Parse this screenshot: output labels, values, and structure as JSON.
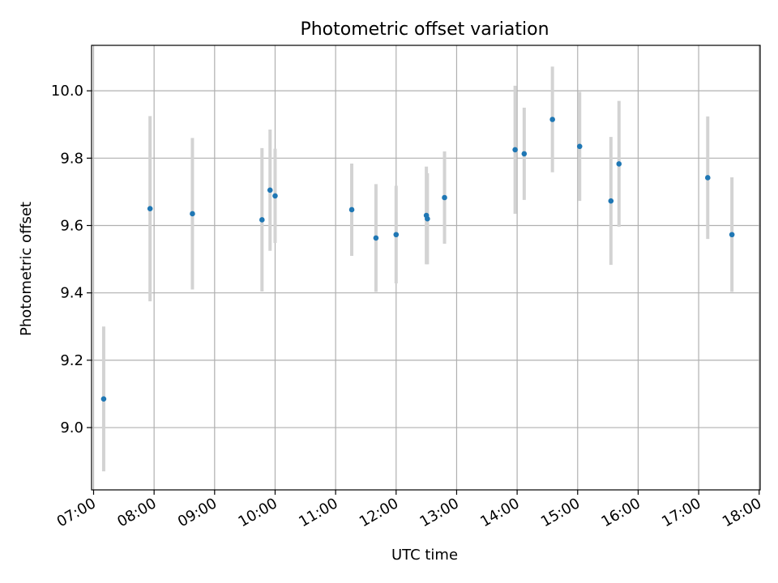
{
  "chart_data": {
    "type": "scatter",
    "title": "Photometric offset variation",
    "xlabel": "UTC time",
    "ylabel": "Photometric offset",
    "x_tick_labels": [
      "07:00",
      "08:00",
      "09:00",
      "10:00",
      "11:00",
      "12:00",
      "13:00",
      "14:00",
      "15:00",
      "16:00",
      "17:00",
      "18:00"
    ],
    "y_tick_labels": [
      "9.0",
      "9.2",
      "9.4",
      "9.6",
      "9.8",
      "10.0"
    ],
    "xlim": [
      "06:58",
      "18:01"
    ],
    "ylim": [
      8.815,
      10.135
    ],
    "grid": true,
    "colors": {
      "point": "#1f77b4",
      "errorbar": "#d3d3d3",
      "grid": "#b0b0b0",
      "axes": "#000000"
    },
    "points": [
      {
        "x": "07:10",
        "y": 9.085,
        "err": 0.215
      },
      {
        "x": "07:56",
        "y": 9.65,
        "err": 0.275
      },
      {
        "x": "08:38",
        "y": 9.635,
        "err": 0.225
      },
      {
        "x": "09:47",
        "y": 9.617,
        "err": 0.213
      },
      {
        "x": "09:55",
        "y": 9.705,
        "err": 0.18
      },
      {
        "x": "10:00",
        "y": 9.688,
        "err": 0.14
      },
      {
        "x": "11:16",
        "y": 9.647,
        "err": 0.137
      },
      {
        "x": "11:40",
        "y": 9.563,
        "err": 0.16
      },
      {
        "x": "12:00",
        "y": 9.573,
        "err": 0.145
      },
      {
        "x": "12:30",
        "y": 9.63,
        "err": 0.145
      },
      {
        "x": "12:31",
        "y": 9.62,
        "err": 0.135
      },
      {
        "x": "12:48",
        "y": 9.683,
        "err": 0.137
      },
      {
        "x": "13:58",
        "y": 9.825,
        "err": 0.19
      },
      {
        "x": "14:07",
        "y": 9.813,
        "err": 0.137
      },
      {
        "x": "14:35",
        "y": 9.915,
        "err": 0.157
      },
      {
        "x": "15:02",
        "y": 9.835,
        "err": 0.162
      },
      {
        "x": "15:33",
        "y": 9.673,
        "err": 0.19
      },
      {
        "x": "15:41",
        "y": 9.783,
        "err": 0.187
      },
      {
        "x": "17:09",
        "y": 9.742,
        "err": 0.182
      },
      {
        "x": "17:33",
        "y": 9.573,
        "err": 0.17
      }
    ]
  }
}
